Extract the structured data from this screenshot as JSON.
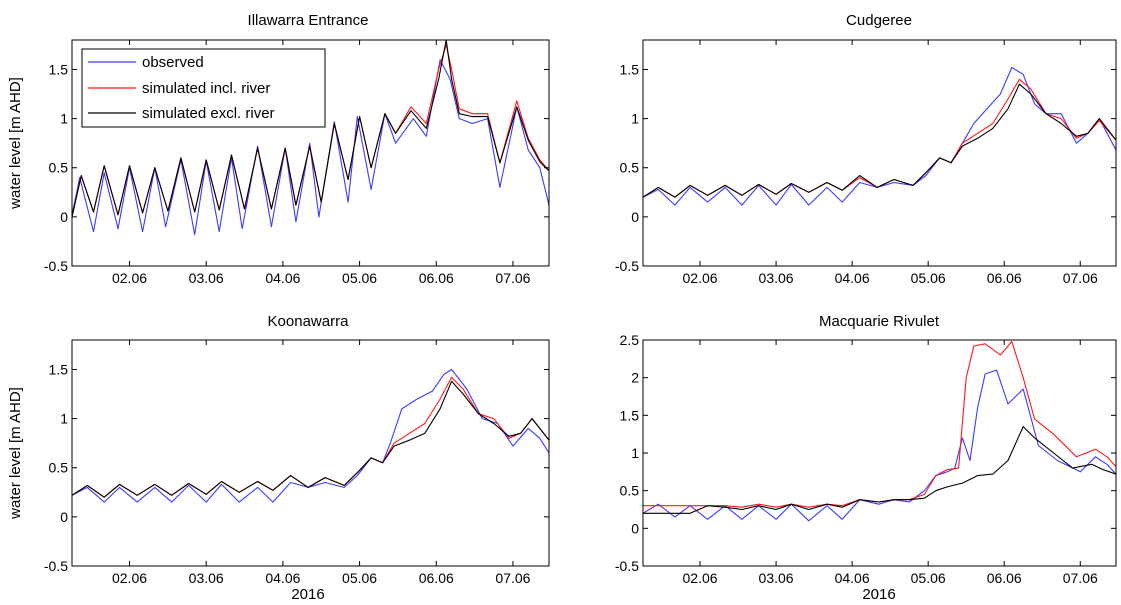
{
  "chart_data": [
    {
      "type": "line",
      "title": "Illawarra Entrance",
      "ylabel": "water level [m AHD]",
      "xlabel": "",
      "xlim": [
        1.0,
        7.22
      ],
      "ylim": [
        -0.5,
        1.8
      ],
      "yticks": [
        -0.5,
        0,
        0.5,
        1,
        1.5
      ],
      "ytick_labels": [
        "-0.5",
        "0",
        "0.5",
        "1",
        "1.5"
      ],
      "xticks": [
        1.75,
        2.75,
        3.75,
        4.75,
        5.75,
        6.75
      ],
      "xtick_labels": [
        "02.06",
        "03.06",
        "04.06",
        "05.06",
        "06.06",
        "07.06"
      ],
      "legend": {
        "placement": "top-left",
        "entries": [
          "observed",
          "simulated incl. river",
          "simulated excl. river"
        ]
      },
      "series": [
        {
          "name": "observed",
          "color": "#3b3bff",
          "x": [
            1.0,
            1.1,
            1.28,
            1.42,
            1.6,
            1.75,
            1.92,
            2.08,
            2.22,
            2.42,
            2.6,
            2.75,
            2.92,
            3.08,
            3.22,
            3.42,
            3.6,
            3.78,
            3.92,
            4.1,
            4.22,
            4.42,
            4.6,
            4.72,
            4.9,
            5.08,
            5.22,
            5.45,
            5.62,
            5.8,
            5.93,
            6.05,
            6.22,
            6.42,
            6.58,
            6.8,
            6.95,
            7.1,
            7.22
          ],
          "y": [
            0.02,
            0.4,
            -0.15,
            0.45,
            -0.12,
            0.5,
            -0.15,
            0.5,
            -0.1,
            0.58,
            -0.18,
            0.57,
            -0.15,
            0.6,
            -0.12,
            0.72,
            -0.1,
            0.7,
            -0.05,
            0.75,
            0.0,
            0.97,
            0.15,
            1.02,
            0.28,
            1.05,
            0.75,
            1.0,
            0.82,
            1.6,
            1.4,
            1.0,
            0.95,
            1.0,
            0.3,
            1.12,
            0.68,
            0.5,
            0.12
          ]
        },
        {
          "name": "simulated incl. river",
          "color": "#ff1a1a",
          "x": [
            1.0,
            1.12,
            1.28,
            1.42,
            1.6,
            1.75,
            1.92,
            2.08,
            2.25,
            2.42,
            2.6,
            2.75,
            2.92,
            3.08,
            3.25,
            3.42,
            3.6,
            3.78,
            3.92,
            4.1,
            4.25,
            4.42,
            4.6,
            4.75,
            4.9,
            5.08,
            5.22,
            5.42,
            5.62,
            5.78,
            5.88,
            5.95,
            6.05,
            6.22,
            6.42,
            6.58,
            6.8,
            6.95,
            7.1,
            7.22
          ],
          "y": [
            0.0,
            0.42,
            0.05,
            0.52,
            0.02,
            0.52,
            0.04,
            0.5,
            0.06,
            0.6,
            0.05,
            0.58,
            0.07,
            0.63,
            0.08,
            0.7,
            0.08,
            0.7,
            0.12,
            0.72,
            0.15,
            0.95,
            0.38,
            1.02,
            0.5,
            1.05,
            0.85,
            1.12,
            0.95,
            1.5,
            1.75,
            1.5,
            1.1,
            1.05,
            1.05,
            0.55,
            1.18,
            0.8,
            0.58,
            0.47
          ]
        },
        {
          "name": "simulated excl. river",
          "color": "#000000",
          "x": [
            1.0,
            1.12,
            1.28,
            1.42,
            1.6,
            1.75,
            1.92,
            2.08,
            2.25,
            2.42,
            2.6,
            2.75,
            2.92,
            3.08,
            3.25,
            3.42,
            3.6,
            3.78,
            3.92,
            4.1,
            4.25,
            4.42,
            4.6,
            4.75,
            4.9,
            5.08,
            5.22,
            5.42,
            5.62,
            5.78,
            5.88,
            5.95,
            6.05,
            6.22,
            6.42,
            6.58,
            6.8,
            6.95,
            7.1,
            7.22
          ],
          "y": [
            0.0,
            0.42,
            0.05,
            0.52,
            0.02,
            0.52,
            0.04,
            0.5,
            0.06,
            0.6,
            0.05,
            0.58,
            0.07,
            0.63,
            0.08,
            0.7,
            0.08,
            0.7,
            0.12,
            0.72,
            0.15,
            0.95,
            0.38,
            1.02,
            0.5,
            1.05,
            0.85,
            1.08,
            0.9,
            1.4,
            1.8,
            1.4,
            1.05,
            1.02,
            1.02,
            0.55,
            1.12,
            0.78,
            0.56,
            0.47
          ]
        }
      ]
    },
    {
      "type": "line",
      "title": "Cudgeree",
      "ylabel": "",
      "xlabel": "",
      "xlim": [
        1.0,
        7.22
      ],
      "ylim": [
        -0.5,
        1.8
      ],
      "yticks": [
        -0.5,
        0,
        0.5,
        1,
        1.5
      ],
      "ytick_labels": [
        "-0.5",
        "0",
        "0.5",
        "1",
        "1.5"
      ],
      "xticks": [
        1.75,
        2.75,
        3.75,
        4.75,
        5.75,
        6.75
      ],
      "xtick_labels": [
        "02.06",
        "03.06",
        "04.06",
        "05.06",
        "06.06",
        "07.06"
      ],
      "series": [
        {
          "name": "observed",
          "color": "#3b3bff",
          "x": [
            1.0,
            1.2,
            1.42,
            1.62,
            1.85,
            2.08,
            2.3,
            2.52,
            2.75,
            2.95,
            3.18,
            3.42,
            3.62,
            3.85,
            4.08,
            4.3,
            4.55,
            4.72,
            4.9,
            5.05,
            5.2,
            5.35,
            5.5,
            5.7,
            5.85,
            6.0,
            6.15,
            6.3,
            6.5,
            6.7,
            6.85,
            7.0,
            7.22
          ],
          "y": [
            0.2,
            0.28,
            0.12,
            0.3,
            0.15,
            0.3,
            0.12,
            0.32,
            0.12,
            0.33,
            0.12,
            0.3,
            0.15,
            0.35,
            0.3,
            0.35,
            0.32,
            0.42,
            0.6,
            0.55,
            0.75,
            0.95,
            1.08,
            1.25,
            1.52,
            1.45,
            1.15,
            1.05,
            1.05,
            0.75,
            0.85,
            1.0,
            0.68
          ]
        },
        {
          "name": "simulated incl. river",
          "color": "#ff1a1a",
          "x": [
            1.0,
            1.2,
            1.42,
            1.62,
            1.85,
            2.08,
            2.3,
            2.52,
            2.75,
            2.95,
            3.18,
            3.42,
            3.62,
            3.85,
            4.08,
            4.3,
            4.55,
            4.72,
            4.9,
            5.05,
            5.2,
            5.4,
            5.6,
            5.8,
            5.95,
            6.1,
            6.3,
            6.5,
            6.7,
            6.85,
            7.0,
            7.22
          ],
          "y": [
            0.2,
            0.3,
            0.2,
            0.32,
            0.22,
            0.32,
            0.22,
            0.33,
            0.23,
            0.34,
            0.25,
            0.35,
            0.27,
            0.4,
            0.3,
            0.38,
            0.32,
            0.45,
            0.6,
            0.55,
            0.75,
            0.85,
            0.95,
            1.2,
            1.4,
            1.3,
            1.05,
            1.0,
            0.8,
            0.85,
            0.98,
            0.78
          ]
        },
        {
          "name": "simulated excl. river",
          "color": "#000000",
          "x": [
            1.0,
            1.2,
            1.42,
            1.62,
            1.85,
            2.08,
            2.3,
            2.52,
            2.75,
            2.95,
            3.18,
            3.42,
            3.62,
            3.85,
            4.08,
            4.3,
            4.55,
            4.72,
            4.9,
            5.05,
            5.2,
            5.4,
            5.6,
            5.8,
            5.95,
            6.1,
            6.3,
            6.5,
            6.7,
            6.85,
            7.0,
            7.22
          ],
          "y": [
            0.2,
            0.3,
            0.2,
            0.32,
            0.22,
            0.32,
            0.22,
            0.33,
            0.23,
            0.34,
            0.25,
            0.35,
            0.27,
            0.42,
            0.3,
            0.38,
            0.32,
            0.45,
            0.6,
            0.55,
            0.72,
            0.8,
            0.9,
            1.1,
            1.35,
            1.25,
            1.05,
            0.95,
            0.82,
            0.85,
            1.0,
            0.78
          ]
        }
      ]
    },
    {
      "type": "line",
      "title": "Koonawarra",
      "ylabel": "water level [m AHD]",
      "xlabel": "2016",
      "xlim": [
        1.0,
        7.22
      ],
      "ylim": [
        -0.5,
        1.8
      ],
      "yticks": [
        -0.5,
        0,
        0.5,
        1,
        1.5
      ],
      "ytick_labels": [
        "-0.5",
        "0",
        "0.5",
        "1",
        "1.5"
      ],
      "xticks": [
        1.75,
        2.75,
        3.75,
        4.75,
        5.75,
        6.75
      ],
      "xtick_labels": [
        "02.06",
        "03.06",
        "04.06",
        "05.06",
        "06.06",
        "07.06"
      ],
      "series": [
        {
          "name": "observed",
          "color": "#3b3bff",
          "x": [
            1.0,
            1.2,
            1.42,
            1.62,
            1.85,
            2.08,
            2.3,
            2.52,
            2.75,
            2.95,
            3.18,
            3.42,
            3.62,
            3.85,
            4.08,
            4.3,
            4.55,
            4.72,
            4.9,
            5.05,
            5.15,
            5.3,
            5.5,
            5.7,
            5.85,
            5.95,
            6.15,
            6.35,
            6.55,
            6.75,
            6.95,
            7.1,
            7.22
          ],
          "y": [
            0.22,
            0.3,
            0.15,
            0.3,
            0.15,
            0.3,
            0.15,
            0.32,
            0.15,
            0.33,
            0.15,
            0.3,
            0.15,
            0.35,
            0.3,
            0.35,
            0.3,
            0.42,
            0.6,
            0.55,
            0.75,
            1.1,
            1.2,
            1.28,
            1.45,
            1.5,
            1.3,
            1.0,
            0.95,
            0.72,
            0.9,
            0.8,
            0.65
          ]
        },
        {
          "name": "simulated incl. river",
          "color": "#ff1a1a",
          "x": [
            1.0,
            1.2,
            1.42,
            1.62,
            1.85,
            2.08,
            2.3,
            2.52,
            2.75,
            2.95,
            3.18,
            3.42,
            3.62,
            3.85,
            4.08,
            4.3,
            4.55,
            4.72,
            4.9,
            5.05,
            5.2,
            5.4,
            5.6,
            5.8,
            5.95,
            6.1,
            6.3,
            6.5,
            6.7,
            6.85,
            7.0,
            7.22
          ],
          "y": [
            0.22,
            0.32,
            0.2,
            0.33,
            0.22,
            0.33,
            0.22,
            0.34,
            0.23,
            0.36,
            0.25,
            0.36,
            0.27,
            0.42,
            0.3,
            0.4,
            0.32,
            0.45,
            0.6,
            0.55,
            0.75,
            0.85,
            0.95,
            1.2,
            1.42,
            1.3,
            1.05,
            1.0,
            0.8,
            0.85,
            1.0,
            0.78
          ]
        },
        {
          "name": "simulated excl. river",
          "color": "#000000",
          "x": [
            1.0,
            1.2,
            1.42,
            1.62,
            1.85,
            2.08,
            2.3,
            2.52,
            2.75,
            2.95,
            3.18,
            3.42,
            3.62,
            3.85,
            4.08,
            4.3,
            4.55,
            4.72,
            4.9,
            5.05,
            5.2,
            5.4,
            5.6,
            5.8,
            5.95,
            6.1,
            6.3,
            6.5,
            6.7,
            6.85,
            7.0,
            7.22
          ],
          "y": [
            0.22,
            0.32,
            0.2,
            0.33,
            0.22,
            0.33,
            0.22,
            0.34,
            0.23,
            0.36,
            0.25,
            0.36,
            0.27,
            0.42,
            0.3,
            0.4,
            0.32,
            0.45,
            0.6,
            0.55,
            0.72,
            0.78,
            0.85,
            1.1,
            1.38,
            1.25,
            1.05,
            0.95,
            0.82,
            0.85,
            1.0,
            0.78
          ]
        }
      ]
    },
    {
      "type": "line",
      "title": "Macquarie Rivulet",
      "ylabel": "",
      "xlabel": "2016",
      "xlim": [
        1.0,
        7.22
      ],
      "ylim": [
        -0.5,
        2.5
      ],
      "yticks": [
        -0.5,
        0,
        0.5,
        1,
        1.5,
        2,
        2.5
      ],
      "ytick_labels": [
        "-0.5",
        "0",
        "0.5",
        "1",
        "1.5",
        "2",
        "2.5"
      ],
      "xticks": [
        1.75,
        2.75,
        3.75,
        4.75,
        5.75,
        6.75
      ],
      "xtick_labels": [
        "02.06",
        "03.06",
        "04.06",
        "05.06",
        "06.06",
        "07.06"
      ],
      "series": [
        {
          "name": "observed",
          "color": "#3b3bff",
          "x": [
            1.0,
            1.2,
            1.42,
            1.62,
            1.85,
            2.08,
            2.3,
            2.52,
            2.75,
            2.95,
            3.18,
            3.42,
            3.62,
            3.85,
            4.1,
            4.3,
            4.5,
            4.7,
            4.85,
            5.0,
            5.1,
            5.2,
            5.3,
            5.4,
            5.5,
            5.65,
            5.8,
            6.0,
            6.2,
            6.45,
            6.75,
            6.95,
            7.1,
            7.22
          ],
          "y": [
            0.2,
            0.32,
            0.15,
            0.3,
            0.12,
            0.3,
            0.12,
            0.3,
            0.12,
            0.32,
            0.1,
            0.3,
            0.12,
            0.38,
            0.32,
            0.38,
            0.35,
            0.5,
            0.7,
            0.75,
            0.8,
            1.2,
            0.9,
            1.6,
            2.05,
            2.1,
            1.65,
            1.85,
            1.1,
            0.9,
            0.75,
            0.95,
            0.85,
            0.72
          ]
        },
        {
          "name": "simulated incl. river",
          "color": "#ff1a1a",
          "x": [
            1.0,
            1.2,
            1.42,
            1.62,
            1.85,
            2.08,
            2.3,
            2.52,
            2.75,
            2.95,
            3.18,
            3.42,
            3.62,
            3.85,
            4.1,
            4.3,
            4.5,
            4.7,
            4.85,
            5.0,
            5.15,
            5.25,
            5.35,
            5.5,
            5.7,
            5.85,
            6.0,
            6.15,
            6.4,
            6.7,
            6.95,
            7.1,
            7.22
          ],
          "y": [
            0.3,
            0.3,
            0.3,
            0.3,
            0.3,
            0.3,
            0.28,
            0.32,
            0.28,
            0.32,
            0.28,
            0.32,
            0.3,
            0.38,
            0.35,
            0.38,
            0.38,
            0.45,
            0.7,
            0.78,
            0.8,
            2.0,
            2.42,
            2.45,
            2.3,
            2.48,
            2.0,
            1.45,
            1.25,
            0.95,
            1.05,
            0.95,
            0.82
          ]
        },
        {
          "name": "simulated excl. river",
          "color": "#000000",
          "x": [
            1.0,
            1.2,
            1.42,
            1.62,
            1.85,
            2.08,
            2.3,
            2.52,
            2.75,
            2.95,
            3.18,
            3.42,
            3.62,
            3.85,
            4.1,
            4.3,
            4.5,
            4.7,
            4.85,
            5.0,
            5.2,
            5.4,
            5.6,
            5.8,
            6.0,
            6.15,
            6.4,
            6.65,
            6.9,
            7.05,
            7.22
          ],
          "y": [
            0.2,
            0.2,
            0.2,
            0.2,
            0.3,
            0.28,
            0.25,
            0.3,
            0.25,
            0.32,
            0.25,
            0.32,
            0.28,
            0.38,
            0.35,
            0.38,
            0.38,
            0.4,
            0.5,
            0.55,
            0.6,
            0.7,
            0.72,
            0.9,
            1.35,
            1.2,
            1.0,
            0.8,
            0.85,
            0.78,
            0.72
          ]
        }
      ]
    }
  ]
}
